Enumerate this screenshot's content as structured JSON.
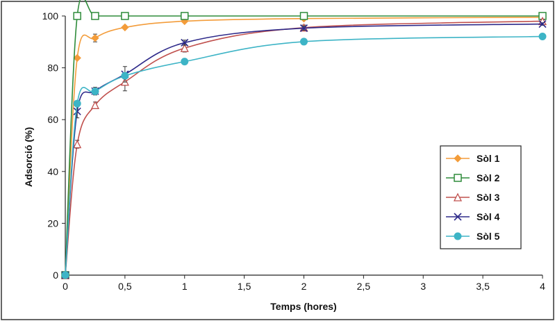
{
  "chart_data": {
    "type": "line",
    "title": "",
    "xlabel": "Temps (hores)",
    "ylabel": "Adsorció (%)",
    "xlim": [
      0,
      4
    ],
    "ylim": [
      0,
      100
    ],
    "x_ticks": [
      "0",
      "0,5",
      "1",
      "1,5",
      "2",
      "2,5",
      "3",
      "3,5",
      "4"
    ],
    "y_ticks": [
      "0",
      "20",
      "40",
      "60",
      "80",
      "100"
    ],
    "grid": false,
    "legend_position": "right",
    "series": [
      {
        "name": "Sòl 1",
        "color": "#f39c3a",
        "marker": "diamond-filled",
        "points": [
          [
            0,
            0
          ],
          [
            0.1,
            83.8
          ],
          [
            0.25,
            91.5
          ],
          [
            0.5,
            95.6
          ],
          [
            1,
            98
          ],
          [
            2,
            99
          ],
          [
            4,
            99.5
          ]
        ],
        "errors": [
          0,
          0,
          1.5,
          0.6,
          0.5,
          0.3,
          0.3
        ]
      },
      {
        "name": "Sòl 2",
        "color": "#2e8b3a",
        "marker": "square-open",
        "points": [
          [
            0,
            0
          ],
          [
            0.1,
            100
          ],
          [
            0.25,
            100
          ],
          [
            0.5,
            100
          ],
          [
            1,
            100
          ],
          [
            2,
            100
          ],
          [
            4,
            100
          ]
        ],
        "errors": [
          0,
          0,
          0,
          0,
          0,
          0,
          0
        ]
      },
      {
        "name": "Sòl 3",
        "color": "#c0504d",
        "marker": "triangle-open",
        "points": [
          [
            0,
            0
          ],
          [
            0.1,
            50.5
          ],
          [
            0.25,
            65.6
          ],
          [
            0.5,
            74.6
          ],
          [
            1,
            87.6
          ],
          [
            2,
            95.5
          ],
          [
            4,
            98
          ]
        ],
        "errors": [
          0,
          1.5,
          1.2,
          3.5,
          1.5,
          1,
          0.8
        ]
      },
      {
        "name": "Sòl 4",
        "color": "#2e2a8a",
        "marker": "x",
        "points": [
          [
            0,
            0
          ],
          [
            0.1,
            63.2
          ],
          [
            0.25,
            71
          ],
          [
            0.5,
            77.5
          ],
          [
            1,
            89.7
          ],
          [
            2,
            95.3
          ],
          [
            4,
            96.9
          ]
        ],
        "errors": [
          0,
          2.5,
          1.5,
          3,
          1,
          0.8,
          0.5
        ]
      },
      {
        "name": "Sòl 5",
        "color": "#3db4c6",
        "marker": "circle-filled",
        "points": [
          [
            0,
            0
          ],
          [
            0.1,
            66.2
          ],
          [
            0.25,
            70.9
          ],
          [
            0.5,
            76.9
          ],
          [
            1,
            82.4
          ],
          [
            2,
            90.1
          ],
          [
            4,
            92.1
          ]
        ],
        "errors": [
          0,
          0,
          0,
          1,
          0,
          0,
          0
        ]
      }
    ]
  }
}
